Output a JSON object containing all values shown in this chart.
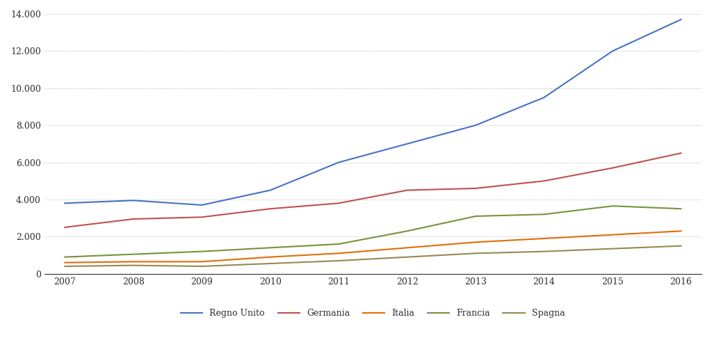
{
  "years": [
    2007,
    2008,
    2009,
    2010,
    2011,
    2012,
    2013,
    2014,
    2015,
    2016
  ],
  "series": {
    "Regno Unito": [
      3800,
      3950,
      3700,
      4500,
      6000,
      7000,
      8000,
      9500,
      12000,
      13700
    ],
    "Germania": [
      2500,
      2950,
      3050,
      3500,
      3800,
      4500,
      4600,
      5000,
      5700,
      6500
    ],
    "Italia": [
      600,
      650,
      650,
      900,
      1100,
      1400,
      1700,
      1900,
      2100,
      2300
    ],
    "Francia": [
      900,
      1050,
      1200,
      1400,
      1600,
      2300,
      3100,
      3200,
      3650,
      3500
    ],
    "Spagna": [
      400,
      450,
      400,
      550,
      700,
      900,
      1100,
      1200,
      1350,
      1500
    ]
  },
  "colors": {
    "Regno Unito": "#4472C4",
    "Germania": "#C0504D",
    "Italia": "#E36C09",
    "Francia": "#76923C",
    "Spagna": "#948A54"
  },
  "ylim": [
    0,
    14000
  ],
  "yticks": [
    0,
    2000,
    4000,
    6000,
    8000,
    10000,
    12000,
    14000
  ],
  "background_color": "#FFFFFF",
  "plot_bg_color": "#FFFFFF",
  "grid_color": "#AAAAAA",
  "text_color": "#2F2F2F",
  "line_width": 1.5,
  "legend_order": [
    "Regno Unito",
    "Germania",
    "Italia",
    "Francia",
    "Spagna"
  ],
  "font_family": "DejaVu Serif"
}
